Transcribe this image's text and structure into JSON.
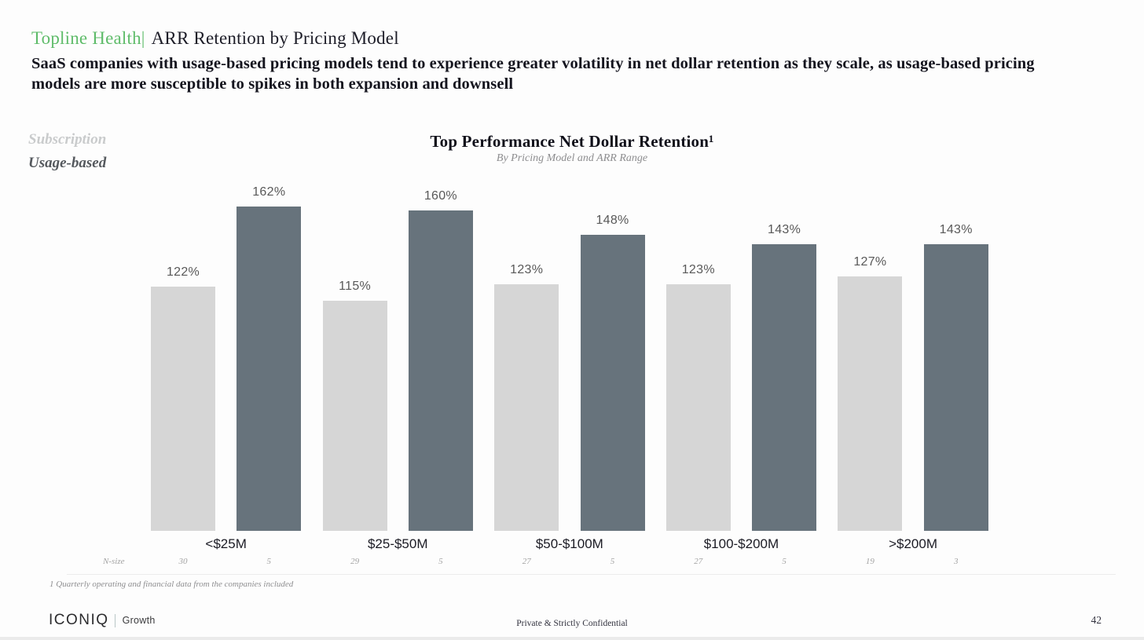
{
  "header": {
    "eyebrow": "Topline Health|",
    "title": "ARR Retention by Pricing Model",
    "subtitle": "SaaS companies with usage-based pricing models tend to experience greater volatility in net dollar retention as they scale, as usage-based pricing models are more susceptible to spikes in both expansion and downsell"
  },
  "legend": {
    "items": [
      {
        "label": "Subscription",
        "text_color": "#c9cbcc"
      },
      {
        "label": "Usage-based",
        "text_color": "#54585d"
      }
    ]
  },
  "chart_data": {
    "type": "bar",
    "title": "Top Performance Net Dollar Retention¹",
    "subtitle": "By Pricing Model and ARR Range",
    "categories": [
      "<$25M",
      "$25-$50M",
      "$50-$100M",
      "$100-$200M",
      ">$200M"
    ],
    "series": [
      {
        "name": "Subscription",
        "values": [
          122,
          115,
          123,
          123,
          127
        ],
        "color": "#d6d6d6",
        "n_sizes": [
          30,
          29,
          27,
          27,
          19
        ]
      },
      {
        "name": "Usage-based",
        "values": [
          162,
          160,
          148,
          143,
          143
        ],
        "color": "#67737c",
        "n_sizes": [
          5,
          5,
          5,
          5,
          3
        ]
      }
    ],
    "value_suffix": "%",
    "ylim": [
      0,
      170
    ],
    "grid": false,
    "legend_position": "top-left",
    "n_size_label": "N-size"
  },
  "footnote": "1 Quarterly operating and financial data from the companies included",
  "footer": {
    "brand": "ICONIQ",
    "brand_suffix": "Growth",
    "confidential": "Private & Strictly Confidential",
    "page": "42"
  }
}
